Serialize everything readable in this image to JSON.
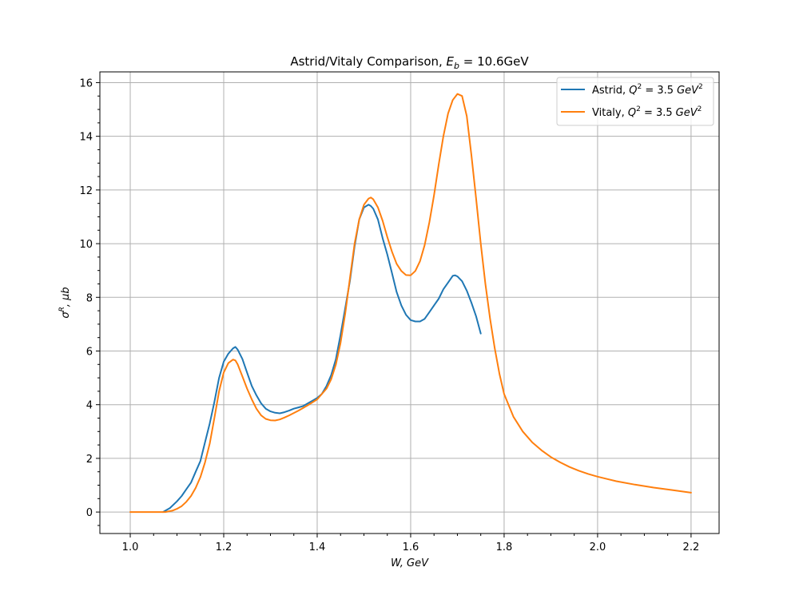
{
  "chart_data": {
    "type": "line",
    "title": "Astrid/Vitaly Comparison, E_b = 10.6GeV",
    "title_text": "Astrid/Vitaly Comparison, ",
    "title_math": {
      "var": "E",
      "sub": "b",
      "rest": " = 10.6GeV"
    },
    "xlabel": "W, GeV",
    "ylabel": "σ^R, μb",
    "xlim": [
      0.935,
      2.26
    ],
    "ylim": [
      -0.8,
      16.4
    ],
    "xticks": [
      1.0,
      1.2,
      1.4,
      1.6,
      1.8,
      2.0,
      2.2
    ],
    "xtick_labels": [
      "1.0",
      "1.2",
      "1.4",
      "1.6",
      "1.8",
      "2.0",
      "2.2"
    ],
    "yticks": [
      0,
      2,
      4,
      6,
      8,
      10,
      12,
      14,
      16
    ],
    "ytick_labels": [
      "0",
      "2",
      "4",
      "6",
      "8",
      "10",
      "12",
      "14",
      "16"
    ],
    "grid": true,
    "legend_position": "top-right",
    "series": [
      {
        "name": "Astrid, Q^2 = 3.5 GeV^2",
        "legend_prefix": "Astrid, ",
        "color": "#1f77b4",
        "x": [
          1.07,
          1.085,
          1.1,
          1.11,
          1.12,
          1.13,
          1.14,
          1.15,
          1.16,
          1.17,
          1.175,
          1.18,
          1.19,
          1.2,
          1.21,
          1.22,
          1.225,
          1.23,
          1.24,
          1.25,
          1.26,
          1.27,
          1.28,
          1.29,
          1.3,
          1.31,
          1.32,
          1.33,
          1.34,
          1.35,
          1.36,
          1.37,
          1.38,
          1.39,
          1.4,
          1.41,
          1.42,
          1.43,
          1.44,
          1.45,
          1.46,
          1.47,
          1.48,
          1.49,
          1.5,
          1.51,
          1.515,
          1.52,
          1.53,
          1.54,
          1.55,
          1.56,
          1.57,
          1.58,
          1.59,
          1.6,
          1.61,
          1.62,
          1.63,
          1.64,
          1.65,
          1.66,
          1.67,
          1.68,
          1.69,
          1.695,
          1.7,
          1.71,
          1.72,
          1.73,
          1.74,
          1.75
        ],
        "y": [
          0.0,
          0.15,
          0.4,
          0.6,
          0.85,
          1.1,
          1.5,
          1.9,
          2.6,
          3.3,
          3.7,
          4.1,
          5.0,
          5.6,
          5.9,
          6.1,
          6.15,
          6.05,
          5.7,
          5.2,
          4.7,
          4.35,
          4.05,
          3.85,
          3.75,
          3.7,
          3.68,
          3.72,
          3.78,
          3.85,
          3.9,
          3.95,
          4.05,
          4.15,
          4.25,
          4.4,
          4.7,
          5.1,
          5.7,
          6.6,
          7.6,
          8.6,
          9.9,
          10.9,
          11.35,
          11.45,
          11.4,
          11.3,
          10.9,
          10.2,
          9.6,
          8.9,
          8.2,
          7.7,
          7.35,
          7.15,
          7.1,
          7.1,
          7.2,
          7.45,
          7.7,
          7.95,
          8.3,
          8.55,
          8.8,
          8.82,
          8.78,
          8.6,
          8.25,
          7.8,
          7.3,
          6.65
        ]
      },
      {
        "name": "Vitaly, Q^2 = 3.5 GeV^2",
        "legend_prefix": "Vitaly, ",
        "color": "#ff7f0e",
        "x": [
          1.0,
          1.02,
          1.04,
          1.06,
          1.075,
          1.09,
          1.1,
          1.11,
          1.12,
          1.13,
          1.14,
          1.15,
          1.16,
          1.17,
          1.18,
          1.19,
          1.2,
          1.21,
          1.22,
          1.225,
          1.23,
          1.24,
          1.25,
          1.26,
          1.27,
          1.28,
          1.29,
          1.3,
          1.31,
          1.32,
          1.33,
          1.34,
          1.36,
          1.38,
          1.4,
          1.42,
          1.43,
          1.44,
          1.45,
          1.46,
          1.47,
          1.48,
          1.49,
          1.5,
          1.51,
          1.515,
          1.52,
          1.53,
          1.54,
          1.55,
          1.56,
          1.57,
          1.58,
          1.59,
          1.6,
          1.61,
          1.62,
          1.63,
          1.64,
          1.65,
          1.66,
          1.67,
          1.68,
          1.69,
          1.7,
          1.71,
          1.72,
          1.73,
          1.74,
          1.75,
          1.76,
          1.77,
          1.78,
          1.79,
          1.8,
          1.82,
          1.84,
          1.86,
          1.88,
          1.9,
          1.92,
          1.94,
          1.96,
          1.98,
          2.0,
          2.04,
          2.08,
          2.12,
          2.16,
          2.2
        ],
        "y": [
          0.0,
          0.0,
          0.0,
          0.0,
          0.0,
          0.05,
          0.12,
          0.22,
          0.38,
          0.6,
          0.9,
          1.3,
          1.85,
          2.55,
          3.5,
          4.5,
          5.2,
          5.55,
          5.68,
          5.65,
          5.5,
          5.05,
          4.6,
          4.2,
          3.85,
          3.6,
          3.47,
          3.42,
          3.41,
          3.45,
          3.52,
          3.6,
          3.78,
          3.98,
          4.2,
          4.6,
          4.95,
          5.5,
          6.3,
          7.4,
          8.7,
          10.0,
          10.9,
          11.45,
          11.68,
          11.72,
          11.65,
          11.35,
          10.85,
          10.25,
          9.7,
          9.25,
          8.98,
          8.83,
          8.82,
          8.98,
          9.35,
          9.95,
          10.8,
          11.8,
          12.95,
          14.0,
          14.85,
          15.35,
          15.58,
          15.5,
          14.75,
          13.3,
          11.7,
          10.0,
          8.5,
          7.2,
          6.1,
          5.15,
          4.4,
          3.55,
          3.0,
          2.6,
          2.3,
          2.05,
          1.85,
          1.68,
          1.54,
          1.42,
          1.32,
          1.15,
          1.02,
          0.91,
          0.82,
          0.72
        ]
      }
    ],
    "legend_math": {
      "var": "Q",
      "sup": "2",
      "eq": " = 3.5",
      "unit": "GeV",
      "unit_sup": "2"
    }
  }
}
